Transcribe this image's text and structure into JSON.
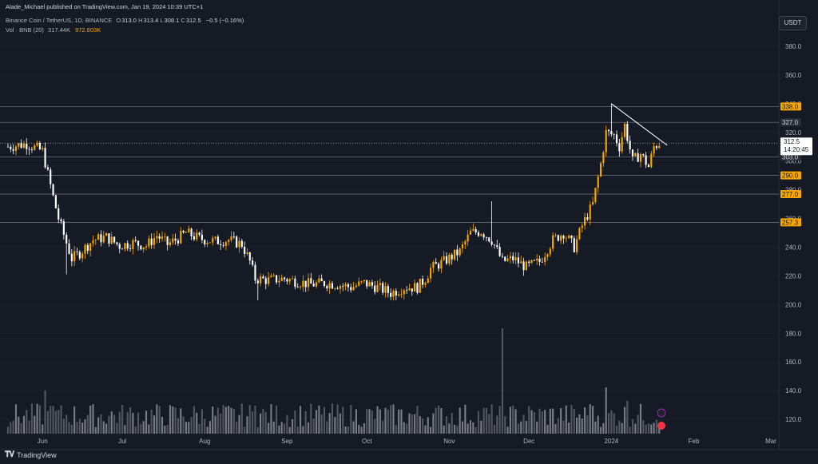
{
  "header": {
    "author_line": "Alade_Michael published on TradingView.com, Jan 19, 2024 10:39 UTC+1"
  },
  "symbol": {
    "name": "Binance Coin / TetherUS, 1D, BINANCE",
    "o_label": "O",
    "o": "313.0",
    "h_label": "H",
    "h": "313.4",
    "l_label": "L",
    "l": "308.1",
    "c_label": "C",
    "c": "312.5",
    "change": "−0.5 (−0.16%)"
  },
  "volume": {
    "label": "Vol · BNB (20)",
    "value": "317.44K",
    "ma_value": "972.603K"
  },
  "currency": "USDT",
  "logo": {
    "text": "TradingView"
  },
  "colors": {
    "background": "#161a25",
    "up": "#f7a600",
    "down": "#ffffff",
    "grid": "#222631",
    "level_line": "#787b86",
    "price_tag_bg": "#ffffff"
  },
  "chart_data": {
    "type": "candlestick",
    "ylim": [
      110,
      390
    ],
    "y_ticks": [
      "120.0",
      "140.0",
      "160.0",
      "180.0",
      "200.0",
      "220.0",
      "240.0",
      "260.0",
      "280.0",
      "300.0",
      "320.0",
      "340.0",
      "360.0",
      "380.0"
    ],
    "x_ticks": [
      "Jun",
      "Jul",
      "Aug",
      "Sep",
      "Oct",
      "Nov",
      "Dec",
      "2024",
      "Feb",
      "Mar"
    ],
    "last_price": "312.5",
    "countdown": "14:20:45",
    "levels": [
      {
        "value": 338.0,
        "label": "338.0",
        "tag": "orange"
      },
      {
        "value": 327.0,
        "label": "327.0",
        "tag": "dark"
      },
      {
        "value": 303.0,
        "label": "303.0",
        "tag": "dark"
      },
      {
        "value": 290.0,
        "label": "290.0",
        "tag": "orange"
      },
      {
        "value": 277.0,
        "label": "277.0",
        "tag": "orange"
      },
      {
        "value": 257.3,
        "label": "257.3",
        "tag": "orange"
      }
    ],
    "trendline": {
      "from": [
        "2024-01-01",
        340
      ],
      "to": [
        "2024-01-22",
        311
      ]
    },
    "price_path": [
      [
        "2023-05-19",
        310
      ],
      [
        "2023-05-26",
        312
      ],
      [
        "2023-06-01",
        307
      ],
      [
        "2023-06-05",
        275
      ],
      [
        "2023-06-07",
        260
      ],
      [
        "2023-06-10",
        243
      ],
      [
        "2023-06-12",
        232
      ],
      [
        "2023-06-15",
        236
      ],
      [
        "2023-06-20",
        245
      ],
      [
        "2023-06-25",
        247
      ],
      [
        "2023-06-30",
        241
      ],
      [
        "2023-07-05",
        243
      ],
      [
        "2023-07-10",
        241
      ],
      [
        "2023-07-14",
        248
      ],
      [
        "2023-07-18",
        242
      ],
      [
        "2023-07-21",
        245
      ],
      [
        "2023-07-25",
        250
      ],
      [
        "2023-07-30",
        246
      ],
      [
        "2023-08-05",
        244
      ],
      [
        "2023-08-10",
        245
      ],
      [
        "2023-08-15",
        242
      ],
      [
        "2023-08-18",
        230
      ],
      [
        "2023-08-20",
        218
      ],
      [
        "2023-08-25",
        217
      ],
      [
        "2023-08-31",
        218
      ],
      [
        "2023-09-05",
        216
      ],
      [
        "2023-09-10",
        214
      ],
      [
        "2023-09-15",
        215
      ],
      [
        "2023-09-20",
        214
      ],
      [
        "2023-09-25",
        212
      ],
      [
        "2023-09-30",
        215
      ],
      [
        "2023-10-05",
        212
      ],
      [
        "2023-10-10",
        208
      ],
      [
        "2023-10-15",
        212
      ],
      [
        "2023-10-20",
        212
      ],
      [
        "2023-10-23",
        218
      ],
      [
        "2023-10-25",
        225
      ],
      [
        "2023-10-30",
        230
      ],
      [
        "2023-11-05",
        237
      ],
      [
        "2023-11-09",
        250
      ],
      [
        "2023-11-13",
        251
      ],
      [
        "2023-11-17",
        245
      ],
      [
        "2023-11-21",
        230
      ],
      [
        "2023-11-25",
        232
      ],
      [
        "2023-11-30",
        226
      ],
      [
        "2023-12-05",
        230
      ],
      [
        "2023-12-10",
        245
      ],
      [
        "2023-12-14",
        250
      ],
      [
        "2023-12-18",
        240
      ],
      [
        "2023-12-21",
        255
      ],
      [
        "2023-12-25",
        270
      ],
      [
        "2023-12-28",
        298
      ],
      [
        "2023-12-30",
        320
      ],
      [
        "2024-01-02",
        318
      ],
      [
        "2024-01-04",
        310
      ],
      [
        "2024-01-06",
        325
      ],
      [
        "2024-01-09",
        300
      ],
      [
        "2024-01-12",
        305
      ],
      [
        "2024-01-15",
        296
      ],
      [
        "2024-01-17",
        310
      ],
      [
        "2024-01-19",
        312.5
      ]
    ],
    "spikes": [
      {
        "date": "2023-06-10",
        "low": 221
      },
      {
        "date": "2023-11-17",
        "high": 272
      },
      {
        "date": "2023-08-21",
        "low": 203
      },
      {
        "date": "2023-10-12",
        "low": 203
      },
      {
        "date": "2024-01-01",
        "high": 340
      }
    ],
    "volume_spikes": [
      {
        "date": "2023-11-21",
        "value": 1
      }
    ],
    "x_range": [
      "2023-05-16",
      "2024-03-04"
    ]
  }
}
